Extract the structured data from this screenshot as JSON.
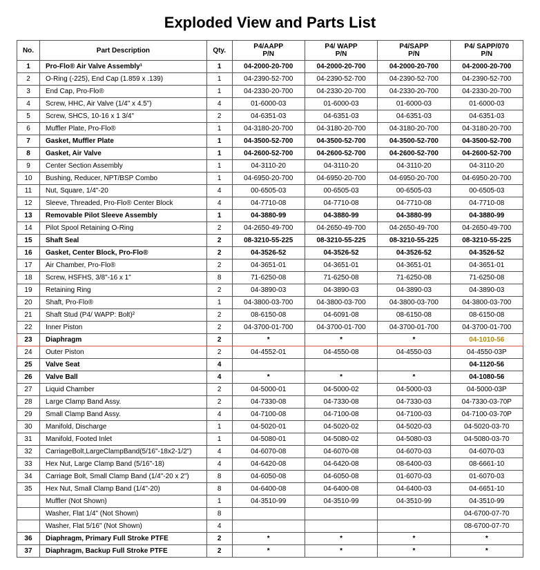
{
  "title": "Exploded View and Parts List",
  "columns": [
    "No.",
    "Part Description",
    "Qty.",
    "P4/AAPP P/N",
    "P4/ WAPP P/N",
    "P4/SAPP P/N",
    "P4/ SAPP/070 P/N"
  ],
  "highlight_row_index": 22,
  "highlight_cell_col": 6,
  "rows": [
    {
      "no": "1",
      "desc": "Pro-Flo® Air Valve Assembly¹",
      "qty": "1",
      "p": [
        "04-2000-20-700",
        "04-2000-20-700",
        "04-2000-20-700",
        "04-2000-20-700"
      ],
      "bold": true
    },
    {
      "no": "2",
      "desc": "O-Ring (-225), End Cap (1.859 x .139)",
      "qty": "1",
      "p": [
        "04-2390-52-700",
        "04-2390-52-700",
        "04-2390-52-700",
        "04-2390-52-700"
      ]
    },
    {
      "no": "3",
      "desc": "End Cap, Pro-Flo®",
      "qty": "1",
      "p": [
        "04-2330-20-700",
        "04-2330-20-700",
        "04-2330-20-700",
        "04-2330-20-700"
      ]
    },
    {
      "no": "4",
      "desc": "Screw, HHC, Air Valve (1/4\" x 4.5\")",
      "qty": "4",
      "p": [
        "01-6000-03",
        "01-6000-03",
        "01-6000-03",
        "01-6000-03"
      ]
    },
    {
      "no": "5",
      "desc": "Screw, SHCS, 10-16 x 1 3/4\"",
      "qty": "2",
      "p": [
        "04-6351-03",
        "04-6351-03",
        "04-6351-03",
        "04-6351-03"
      ]
    },
    {
      "no": "6",
      "desc": "Muffler Plate, Pro-Flo®",
      "qty": "1",
      "p": [
        "04-3180-20-700",
        "04-3180-20-700",
        "04-3180-20-700",
        "04-3180-20-700"
      ]
    },
    {
      "no": "7",
      "desc": "Gasket, Muffler Plate",
      "qty": "1",
      "p": [
        "04-3500-52-700",
        "04-3500-52-700",
        "04-3500-52-700",
        "04-3500-52-700"
      ],
      "bold": true
    },
    {
      "no": "8",
      "desc": "Gasket, Air Valve",
      "qty": "1",
      "p": [
        "04-2600-52-700",
        "04-2600-52-700",
        "04-2600-52-700",
        "04-2600-52-700"
      ],
      "bold": true
    },
    {
      "no": "9",
      "desc": "Center Section Assembly",
      "qty": "1",
      "p": [
        "04-3110-20",
        "04-3110-20",
        "04-3110-20",
        "04-3110-20"
      ]
    },
    {
      "no": "10",
      "desc": "Bushing, Reducer, NPT/BSP Combo",
      "qty": "1",
      "p": [
        "04-6950-20-700",
        "04-6950-20-700",
        "04-6950-20-700",
        "04-6950-20-700"
      ]
    },
    {
      "no": "11",
      "desc": "Nut, Square, 1/4\"-20",
      "qty": "4",
      "p": [
        "00-6505-03",
        "00-6505-03",
        "00-6505-03",
        "00-6505-03"
      ]
    },
    {
      "no": "12",
      "desc": "Sleeve, Threaded, Pro-Flo® Center Block",
      "qty": "4",
      "p": [
        "04-7710-08",
        "04-7710-08",
        "04-7710-08",
        "04-7710-08"
      ]
    },
    {
      "no": "13",
      "desc": "Removable Pilot Sleeve Assembly",
      "qty": "1",
      "p": [
        "04-3880-99",
        "04-3880-99",
        "04-3880-99",
        "04-3880-99"
      ],
      "bold": true
    },
    {
      "no": "14",
      "desc": "Pilot Spool Retaining O-Ring",
      "qty": "2",
      "p": [
        "04-2650-49-700",
        "04-2650-49-700",
        "04-2650-49-700",
        "04-2650-49-700"
      ]
    },
    {
      "no": "15",
      "desc": "Shaft Seal",
      "qty": "2",
      "p": [
        "08-3210-55-225",
        "08-3210-55-225",
        "08-3210-55-225",
        "08-3210-55-225"
      ],
      "bold": true
    },
    {
      "no": "16",
      "desc": "Gasket, Center Block, Pro-Flo®",
      "qty": "2",
      "p": [
        "04-3526-52",
        "04-3526-52",
        "04-3526-52",
        "04-3526-52"
      ],
      "bold": true
    },
    {
      "no": "17",
      "desc": "Air Chamber, Pro-Flo®",
      "qty": "2",
      "p": [
        "04-3651-01",
        "04-3651-01",
        "04-3651-01",
        "04-3651-01"
      ]
    },
    {
      "no": "18",
      "desc": "Screw, HSFHS, 3/8\"-16 x 1\"",
      "qty": "8",
      "p": [
        "71-6250-08",
        "71-6250-08",
        "71-6250-08",
        "71-6250-08"
      ]
    },
    {
      "no": "19",
      "desc": "Retaining Ring",
      "qty": "2",
      "p": [
        "04-3890-03",
        "04-3890-03",
        "04-3890-03",
        "04-3890-03"
      ]
    },
    {
      "no": "20",
      "desc": "Shaft, Pro-Flo®",
      "qty": "1",
      "p": [
        "04-3800-03-700",
        "04-3800-03-700",
        "04-3800-03-700",
        "04-3800-03-700"
      ]
    },
    {
      "no": "21",
      "desc": "Shaft Stud (P4/ WAPP: Bolt)²",
      "qty": "2",
      "p": [
        "08-6150-08",
        "04-6091-08",
        "08-6150-08",
        "08-6150-08"
      ]
    },
    {
      "no": "22",
      "desc": "Inner Piston",
      "qty": "2",
      "p": [
        "04-3700-01-700",
        "04-3700-01-700",
        "04-3700-01-700",
        "04-3700-01-700"
      ]
    },
    {
      "no": "23",
      "desc": "Diaphragm",
      "qty": "2",
      "p": [
        "*",
        "*",
        "*",
        "04-1010-56"
      ],
      "bold": true
    },
    {
      "no": "24",
      "desc": "Outer Piston",
      "qty": "2",
      "p": [
        "04-4552-01",
        "04-4550-08",
        "04-4550-03",
        "04-4550-03P"
      ]
    },
    {
      "no": "25",
      "desc": "Valve Seat",
      "qty": "4",
      "p": [
        "",
        "",
        "",
        "04-1120-56"
      ],
      "bold": true
    },
    {
      "no": "26",
      "desc": "Valve Ball",
      "qty": "4",
      "p": [
        "*",
        "*",
        "*",
        "04-1080-56"
      ],
      "bold": true
    },
    {
      "no": "27",
      "desc": "Liquid Chamber",
      "qty": "2",
      "p": [
        "04-5000-01",
        "04-5000-02",
        "04-5000-03",
        "04-5000-03P"
      ]
    },
    {
      "no": "28",
      "desc": "Large Clamp Band Assy.",
      "qty": "2",
      "p": [
        "04-7330-08",
        "04-7330-08",
        "04-7330-03",
        "04-7330-03-70P"
      ]
    },
    {
      "no": "29",
      "desc": "Small Clamp Band Assy.",
      "qty": "4",
      "p": [
        "04-7100-08",
        "04-7100-08",
        "04-7100-03",
        "04-7100-03-70P"
      ]
    },
    {
      "no": "30",
      "desc": "Manifold, Discharge",
      "qty": "1",
      "p": [
        "04-5020-01",
        "04-5020-02",
        "04-5020-03",
        "04-5020-03-70"
      ]
    },
    {
      "no": "31",
      "desc": "Manifold, Footed Inlet",
      "qty": "1",
      "p": [
        "04-5080-01",
        "04-5080-02",
        "04-5080-03",
        "04-5080-03-70"
      ]
    },
    {
      "no": "32",
      "desc": "CarriageBolt,LargeClampBand(5/16\"-18x2-1/2\")",
      "qty": "4",
      "p": [
        "04-6070-08",
        "04-6070-08",
        "04-6070-03",
        "04-6070-03"
      ]
    },
    {
      "no": "33",
      "desc": "Hex Nut, Large Clamp Band (5/16\"-18)",
      "qty": "4",
      "p": [
        "04-6420-08",
        "04-6420-08",
        "08-6400-03",
        "08-6661-10"
      ]
    },
    {
      "no": "34",
      "desc": "Carriage Bolt, Small Clamp Band (1/4\"-20 x 2\")",
      "qty": "8",
      "p": [
        "04-6050-08",
        "04-6050-08",
        "01-6070-03",
        "01-6070-03"
      ]
    },
    {
      "no": "35",
      "desc": "Hex Nut, Small Clamp Band (1/4\"-20)",
      "qty": "8",
      "p": [
        "04-6400-08",
        "04-6400-08",
        "04-6400-03",
        "04-6651-10"
      ]
    },
    {
      "no": "",
      "desc": "Muffler (Not Shown)",
      "qty": "1",
      "p": [
        "04-3510-99",
        "04-3510-99",
        "04-3510-99",
        "04-3510-99"
      ]
    },
    {
      "no": "",
      "desc": "Washer, Flat 1/4\" (Not Shown)",
      "qty": "8",
      "p": [
        "",
        "",
        "",
        "04-6700-07-70"
      ]
    },
    {
      "no": "",
      "desc": "Washer, Flat 5/16\" (Not Shown)",
      "qty": "4",
      "p": [
        "",
        "",
        "",
        "08-6700-07-70"
      ]
    },
    {
      "no": "36",
      "desc": "Diaphragm, Primary Full Stroke PTFE",
      "qty": "2",
      "p": [
        "*",
        "*",
        "*",
        "*"
      ],
      "bold": true
    },
    {
      "no": "37",
      "desc": "Diaphragm, Backup Full Stroke PTFE",
      "qty": "2",
      "p": [
        "*",
        "*",
        "*",
        "*"
      ],
      "bold": true
    }
  ]
}
